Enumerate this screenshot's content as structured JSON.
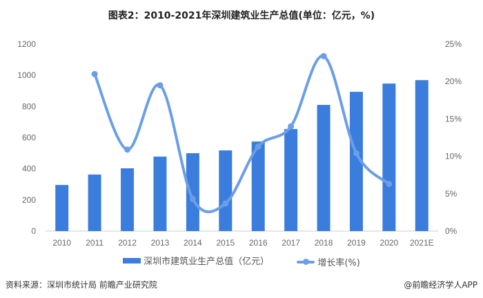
{
  "chart_data": {
    "type": "bar+line",
    "title": "图表2：2010-2021年深圳建筑业生产总值(单位：亿元，%)",
    "categories": [
      "2010",
      "2011",
      "2012",
      "2013",
      "2014",
      "2015",
      "2016",
      "2017",
      "2018",
      "2019",
      "2020",
      "2021E"
    ],
    "series": [
      {
        "name": "深圳市建筑业生产总值（亿元）",
        "type": "bar",
        "axis": "left",
        "color": "#3b7ddd",
        "values": [
          296,
          363,
          403,
          478,
          500,
          518,
          575,
          655,
          810,
          894,
          947,
          969
        ]
      },
      {
        "name": "增长率(%)",
        "type": "line",
        "axis": "right",
        "color": "#6b9ee6",
        "values": [
          null,
          21.0,
          10.9,
          19.5,
          4.3,
          3.7,
          11.3,
          14.0,
          23.4,
          10.4,
          6.3,
          null
        ]
      }
    ],
    "left_axis": {
      "ylim": [
        0,
        1200
      ],
      "ticks": [
        "0",
        "200",
        "400",
        "600",
        "800",
        "1000",
        "1200"
      ]
    },
    "right_axis": {
      "ylim": [
        0,
        25
      ],
      "ticks": [
        "0%",
        "5%",
        "10%",
        "15%",
        "20%",
        "25%"
      ]
    },
    "grid": false,
    "legend": "bottom"
  },
  "footer": {
    "source": "资料来源：深圳市统计局 前瞻产业研究院",
    "credit": "@前瞻经济学人APP"
  }
}
